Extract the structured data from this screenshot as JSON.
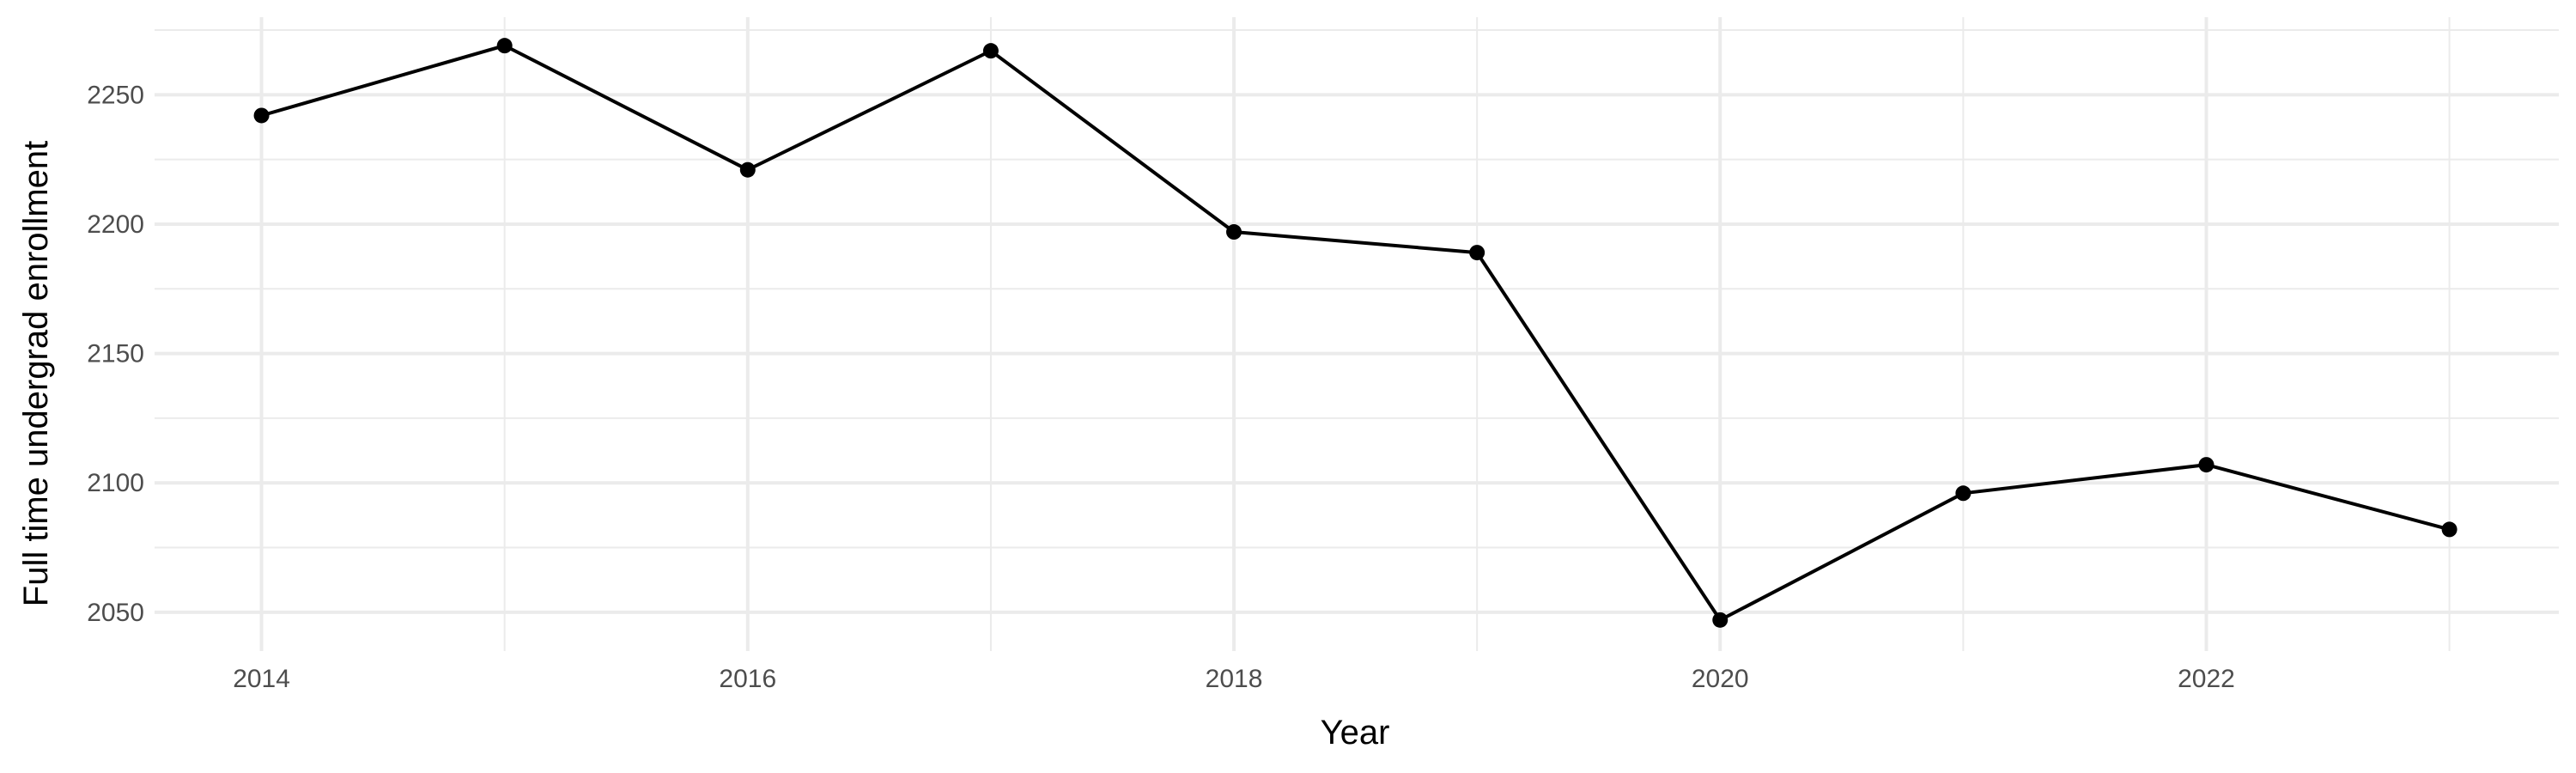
{
  "chart_data": {
    "type": "line",
    "title": "",
    "xlabel": "Year",
    "ylabel": "Full time undergrad enrollment",
    "x": [
      2014,
      2015,
      2016,
      2017,
      2018,
      2019,
      2020,
      2021,
      2022,
      2023
    ],
    "series": [
      {
        "values": [
          2242,
          2269,
          2221,
          2267,
          2197,
          2189,
          2047,
          2096,
          2107,
          2082
        ]
      }
    ],
    "xlim": [
      2013.56,
      2023.45
    ],
    "ylim": [
      2035,
      2280
    ],
    "x_ticks": [
      2014,
      2016,
      2018,
      2020,
      2022
    ],
    "x_tick_labels": [
      "2014",
      "2016",
      "2018",
      "2020",
      "2022"
    ],
    "y_ticks": [
      2050,
      2100,
      2150,
      2200,
      2250
    ],
    "y_tick_labels": [
      "2050",
      "2100",
      "2150",
      "2200",
      "2250"
    ],
    "grid": true,
    "legend": "none",
    "colors": {
      "line": "#000000",
      "points": "#000000",
      "grid": "#ebebeb",
      "tick_text": "#4d4d4d",
      "background": "#ffffff"
    }
  }
}
